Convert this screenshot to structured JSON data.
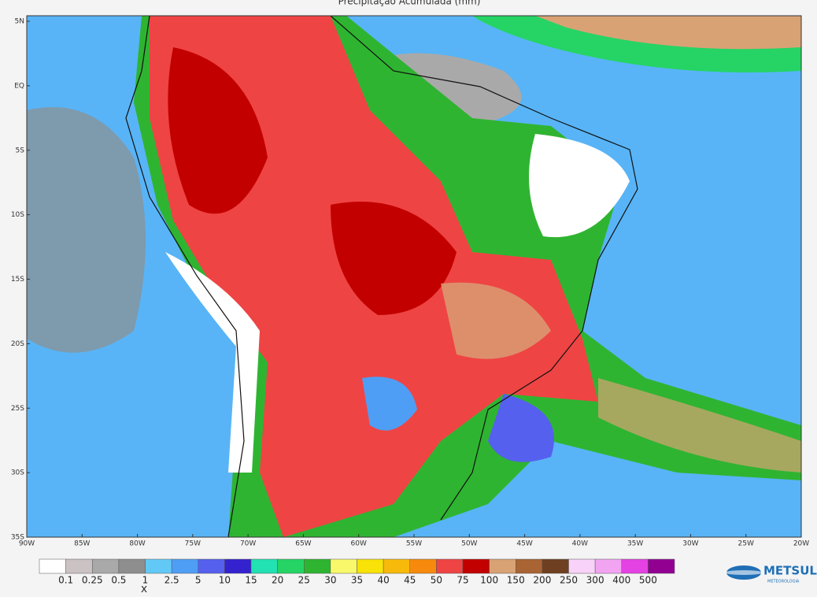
{
  "title": "Precipitação Acumulada (mm)",
  "latitude_labels": [
    "5N",
    "EQ",
    "5S",
    "10S",
    "15S",
    "20S",
    "25S",
    "30S",
    "35S"
  ],
  "longitude_labels": [
    "90W",
    "85W",
    "80W",
    "75W",
    "70W",
    "65W",
    "60W",
    "55W",
    "50W",
    "45W",
    "40W",
    "35W",
    "30W",
    "25W",
    "20W"
  ],
  "colorbar": {
    "labels": [
      "0.1",
      "0.25",
      "0.5",
      "1",
      "2.5",
      "5",
      "10",
      "15",
      "20",
      "25",
      "30",
      "35",
      "40",
      "45",
      "50",
      "75",
      "100",
      "150",
      "200",
      "250",
      "300",
      "400",
      "500"
    ],
    "colors": [
      "#ffffff",
      "#cbc2c4",
      "#a9a9a9",
      "#8e8e8e",
      "#62c9f7",
      "#4f9ef5",
      "#5560ee",
      "#3422cf",
      "#22e1b2",
      "#25d465",
      "#2fb431",
      "#f8f86a",
      "#f8e207",
      "#f8ba0a",
      "#f78a0c",
      "#ef4444",
      "#c30000",
      "#d8a275",
      "#a96433",
      "#6e4021",
      "#f8d2f8",
      "#f2a4f2",
      "#e442e2",
      "#920092"
    ]
  },
  "marker": "x",
  "logo": {
    "name": "METSUL",
    "tagline": "METEOROLOGIA"
  }
}
